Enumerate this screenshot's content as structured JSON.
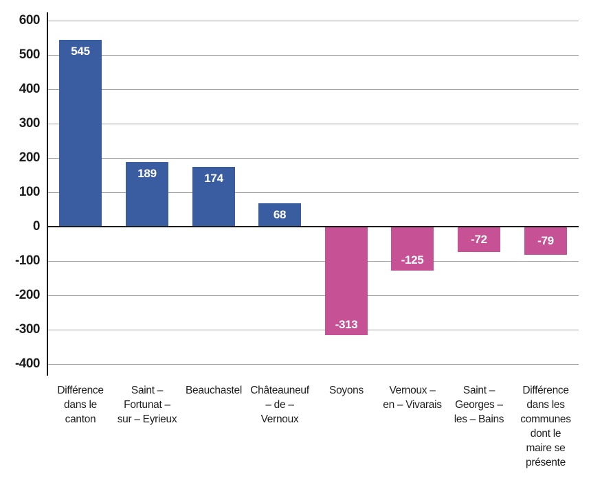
{
  "chart_data": {
    "type": "bar",
    "title": "",
    "xlabel": "",
    "ylabel": "",
    "categories": [
      "Différence dans le canton",
      "Saint – Fortunat – sur – Eyrieux",
      "Beauchastel",
      "Châteauneuf – de – Vernoux",
      "Soyons",
      "Vernoux – en – Vivarais",
      "Saint – Georges – les – Bains",
      "Différence dans les communes dont le maire se présente"
    ],
    "category_lines": [
      [
        "Différence",
        "dans le",
        "canton"
      ],
      [
        "Saint –",
        "Fortunat –",
        "sur – Eyrieux"
      ],
      [
        "Beauchastel"
      ],
      [
        "Châteauneuf",
        "– de –",
        "Vernoux"
      ],
      [
        "Soyons"
      ],
      [
        "Vernoux –",
        "en – Vivarais"
      ],
      [
        "Saint –",
        "Georges –",
        "les – Bains"
      ],
      [
        "Différence",
        "dans les",
        "communes",
        "dont le",
        "maire se",
        "présente"
      ]
    ],
    "values": [
      545,
      189,
      174,
      68,
      -313,
      -125,
      -72,
      -79
    ],
    "bar_labels": [
      "545",
      "189",
      "174",
      "68",
      "-313",
      "-125",
      "-72",
      "-79"
    ],
    "yticks": [
      600,
      500,
      400,
      300,
      200,
      100,
      0,
      -100,
      -200,
      -300,
      -400
    ],
    "ylim": [
      -400,
      600
    ],
    "grid": true,
    "legend": false,
    "colors": {
      "positive": "#3a5ca1",
      "negative": "#c65295",
      "gridline": "#9e9e9e",
      "axis": "#1a1a1a",
      "tick_text": "#1d1d1d",
      "bar_value_text": "#ffffff"
    }
  }
}
